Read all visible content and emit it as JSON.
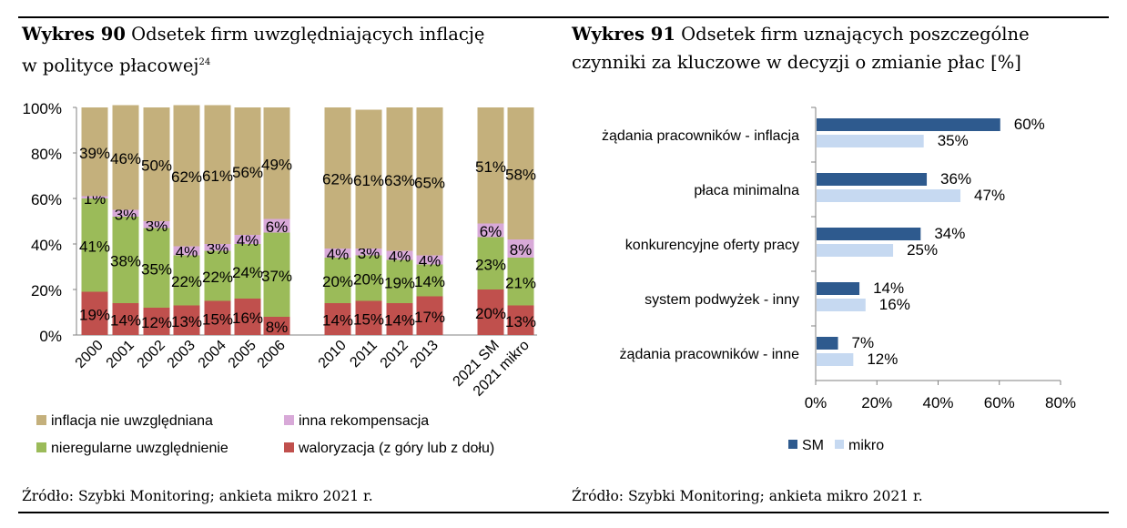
{
  "left_title": {
    "label": "Wykres 90",
    "line1": "Odsetek firm uwzględniających inflację",
    "line2": "w polityce płacowej",
    "footnote": "24"
  },
  "right_title": {
    "label": "Wykres 91",
    "line1": "Odsetek firm uznających poszczególne",
    "line2": "czynniki za kluczowe w decyzji o zmianie płac [%]"
  },
  "left_source": "Źródło: Szybki Monitoring; ankieta mikro 2021 r.",
  "right_source": "Źródło: Szybki Monitoring; ankieta mikro 2021 r.",
  "chart_data": [
    {
      "type": "bar",
      "stacked": true,
      "normalized": true,
      "categories": [
        "2000",
        "2001",
        "2002",
        "2003",
        "2004",
        "2005",
        "2006",
        "2010",
        "2011",
        "2012",
        "2013",
        "2021 SM",
        "2021 mikro"
      ],
      "series": [
        {
          "name": "waloryzacja (z góry lub z dołu)",
          "color": "#c0504d",
          "values": [
            19,
            14,
            12,
            13,
            15,
            16,
            8,
            14,
            15,
            14,
            17,
            20,
            13
          ]
        },
        {
          "name": "nieregularne uwzględnienie",
          "color": "#9bbb59",
          "values": [
            41,
            38,
            35,
            22,
            22,
            24,
            37,
            20,
            20,
            19,
            14,
            23,
            21
          ]
        },
        {
          "name": "inna rekompensacja",
          "color": "#d8a9d8",
          "values": [
            1,
            3,
            3,
            4,
            3,
            4,
            6,
            4,
            3,
            4,
            4,
            6,
            8
          ]
        },
        {
          "name": "inflacja nie uwzględniana",
          "color": "#c4b07c",
          "values": [
            39,
            46,
            50,
            62,
            61,
            56,
            49,
            62,
            61,
            63,
            65,
            51,
            58
          ]
        }
      ],
      "yticks": [
        "0%",
        "20%",
        "40%",
        "60%",
        "80%",
        "100%"
      ],
      "ylim": [
        0,
        100
      ],
      "legend_order": [
        "inflacja nie uwzględniana",
        "inna rekompensacja",
        "nieregularne uwzględnienie",
        "waloryzacja (z góry lub z dołu)"
      ],
      "legend_position": "bottom",
      "grid": false
    },
    {
      "type": "bar",
      "orientation": "horizontal",
      "categories": [
        "żądania pracowników - inflacja",
        "płaca minimalna",
        "konkurencyjne oferty pracy",
        "system podwyżek - inny",
        "żądania pracowników - inne"
      ],
      "series": [
        {
          "name": "SM",
          "color": "#2e5a8e",
          "values": [
            60,
            36,
            34,
            14,
            7
          ]
        },
        {
          "name": "mikro",
          "color": "#c6d9f1",
          "values": [
            35,
            47,
            25,
            16,
            12
          ]
        }
      ],
      "xticks": [
        "0%",
        "20%",
        "40%",
        "60%",
        "80%"
      ],
      "xlim": [
        0,
        80
      ],
      "legend_position": "bottom",
      "grid": false
    }
  ]
}
